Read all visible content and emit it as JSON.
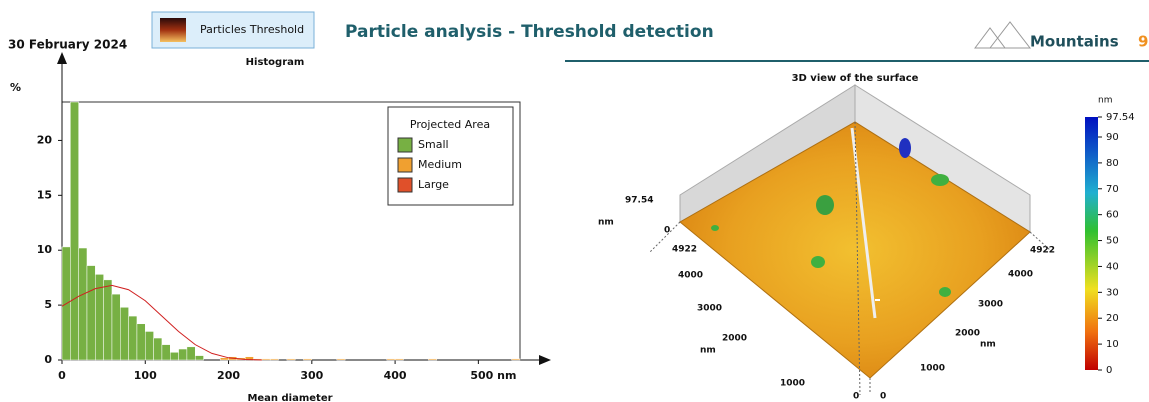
{
  "header": {
    "date": "30 February 2024",
    "button": "Particles Threshold",
    "title": "Particle analysis - Threshold detection",
    "logo": "Mountains",
    "logo_version": "9"
  },
  "chart_data": {
    "type": "histogram",
    "title": "Histogram",
    "x_label": "Mean diameter",
    "y_label": "%",
    "bins": [
      0,
      10,
      20,
      30,
      40,
      50,
      60,
      70,
      80,
      90,
      100,
      110,
      120,
      130,
      140,
      150,
      160,
      170,
      180,
      190,
      200,
      210,
      220,
      230,
      240,
      250,
      260,
      270,
      280,
      290,
      300,
      310,
      320,
      330,
      340,
      350,
      360,
      370,
      380,
      390,
      400,
      410,
      420,
      430,
      440,
      450,
      460,
      470,
      480,
      490,
      500,
      510,
      520,
      530,
      540,
      550
    ],
    "series": [
      {
        "name": "Small",
        "color": "#77b043",
        "values": [
          10.3,
          23.5,
          10.2,
          8.6,
          7.8,
          7.3,
          6.0,
          4.8,
          4.0,
          3.3,
          2.6,
          2.0,
          1.4,
          0.7,
          1.0,
          1.2,
          0.4,
          0,
          0,
          0,
          0,
          0,
          0,
          0,
          0,
          0,
          0,
          0,
          0,
          0,
          0,
          0,
          0,
          0,
          0,
          0,
          0,
          0,
          0,
          0,
          0,
          0,
          0,
          0,
          0,
          0,
          0,
          0,
          0,
          0,
          0,
          0,
          0,
          0,
          0
        ]
      },
      {
        "name": "Medium",
        "color": "#f0a030",
        "values": [
          0,
          0,
          0,
          0,
          0,
          0,
          0,
          0,
          0,
          0,
          0,
          0,
          0,
          0,
          0,
          0,
          0,
          0,
          0,
          0.2,
          0.3,
          0.2,
          0.3,
          0.1,
          0.1,
          0.1,
          0,
          0.1,
          0,
          0.1,
          0,
          0,
          0,
          0.1,
          0,
          0,
          0,
          0,
          0,
          0.1,
          0.1,
          0,
          0,
          0,
          0.1,
          0,
          0,
          0,
          0,
          0,
          0,
          0,
          0,
          0,
          0.1
        ]
      },
      {
        "name": "Large",
        "color": "#e0502a",
        "values": [
          0,
          0,
          0,
          0,
          0,
          0,
          0,
          0,
          0,
          0,
          0,
          0,
          0,
          0,
          0,
          0,
          0,
          0,
          0,
          0,
          0,
          0,
          0,
          0,
          0,
          0,
          0,
          0,
          0,
          0,
          0,
          0,
          0,
          0,
          0,
          0,
          0,
          0,
          0,
          0,
          0,
          0,
          0,
          0,
          0,
          0,
          0,
          0,
          0,
          0,
          0,
          0,
          0,
          0,
          0
        ]
      }
    ],
    "fit": {
      "color": "#d02020",
      "x": [
        0,
        20,
        40,
        60,
        80,
        100,
        120,
        140,
        160,
        180,
        200,
        220,
        240
      ],
      "values": [
        4.9,
        5.8,
        6.5,
        6.8,
        6.4,
        5.4,
        4.0,
        2.6,
        1.4,
        0.6,
        0.2,
        0.05,
        0
      ]
    },
    "legend_title": "Projected Area",
    "xlim": [
      0,
      550
    ],
    "xticks": [
      0,
      100,
      200,
      300,
      400,
      {
        "value": 500,
        "label": "500 nm"
      }
    ],
    "ylim": [
      0,
      23.5
    ],
    "yticks": [
      0,
      5,
      10,
      15,
      20
    ]
  },
  "surface_view": {
    "title": "3D view of the surface",
    "z_max": "97.54",
    "z_unit": "nm",
    "z_min": "0",
    "left_axis": [
      "4922",
      "4000",
      "3000",
      "2000",
      "1000",
      "0"
    ],
    "left_unit": "nm",
    "right_axis": [
      "4922",
      "4000",
      "3000",
      "2000",
      "1000",
      "0"
    ],
    "right_unit": "nm",
    "colorbar_unit": "nm",
    "colorbar_ticks": [
      "97.54",
      "90",
      "80",
      "70",
      "60",
      "50",
      "40",
      "30",
      "20",
      "10",
      "0"
    ]
  }
}
